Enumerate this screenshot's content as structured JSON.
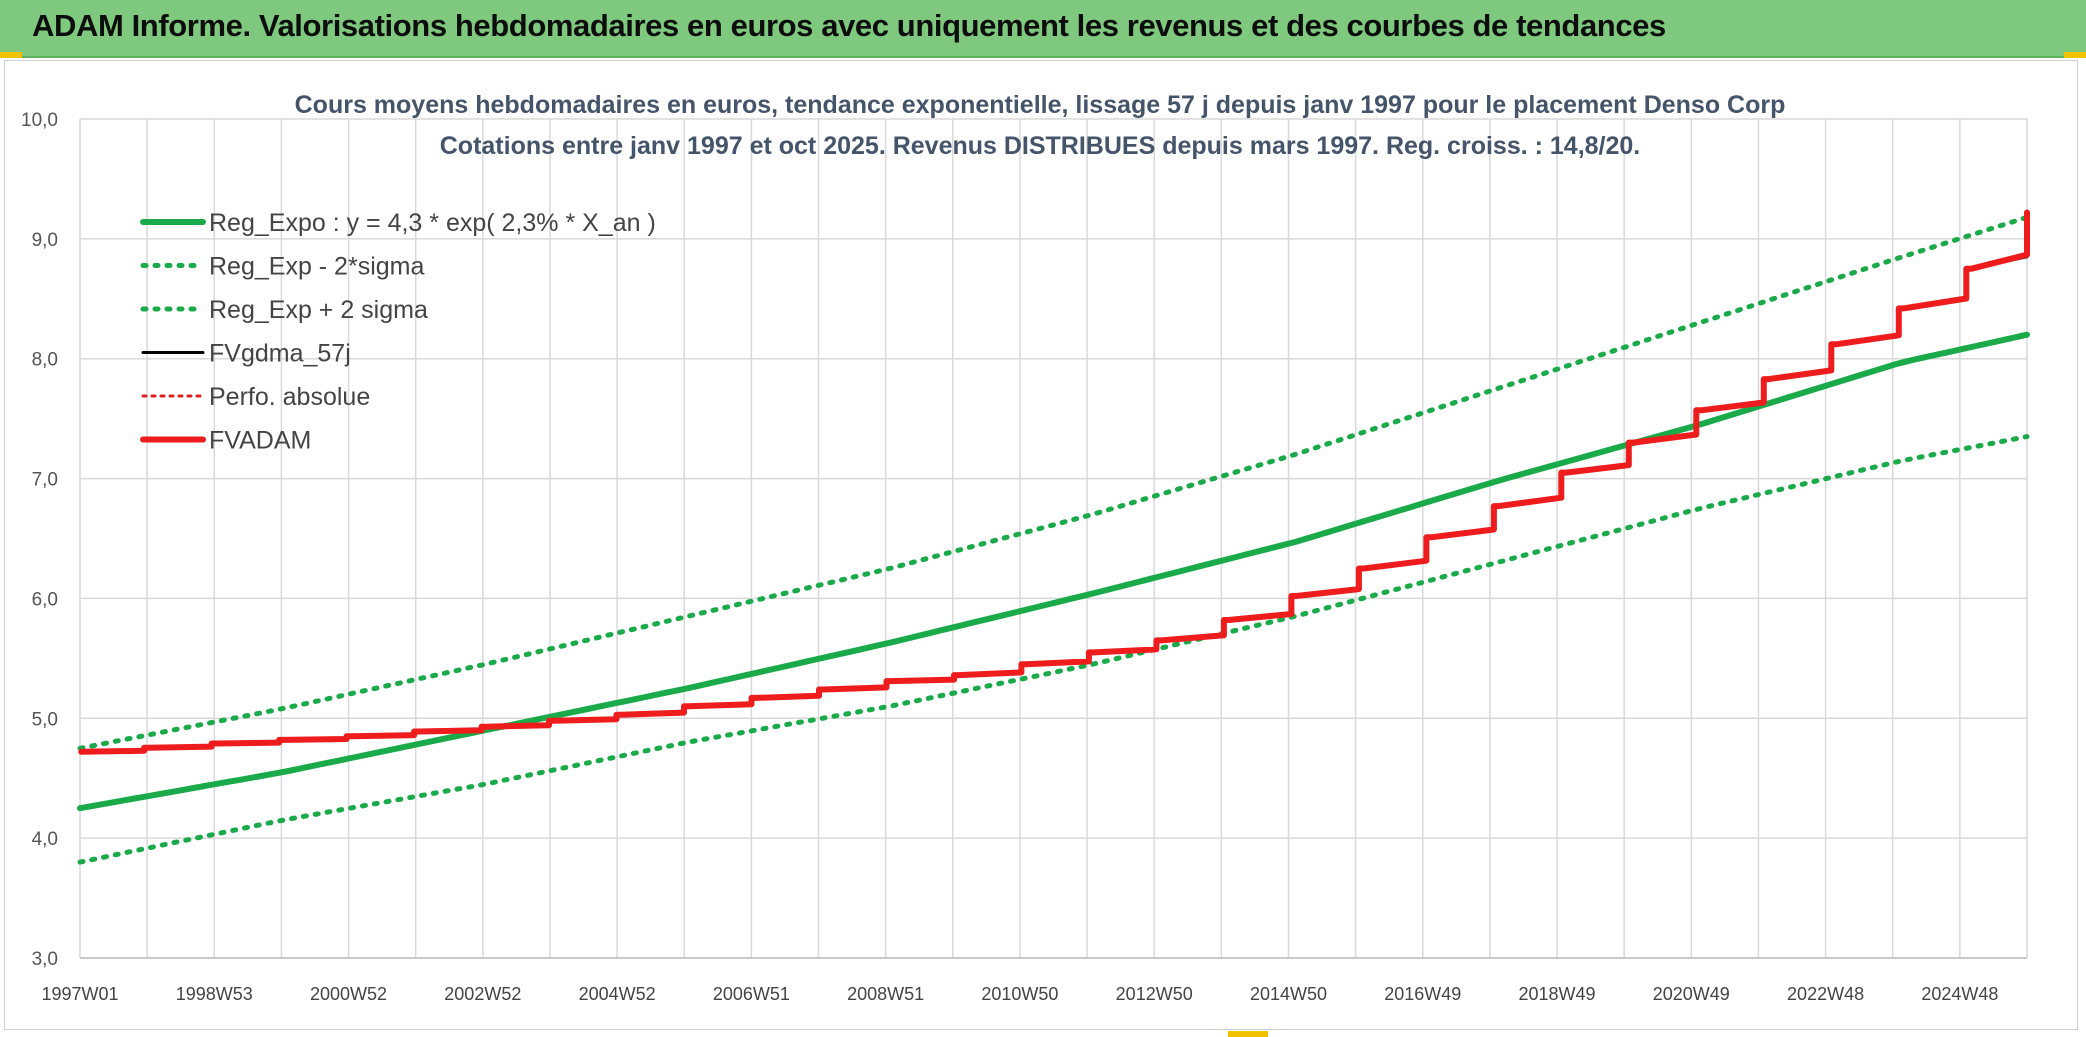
{
  "banner": {
    "title": "ADAM Informe. Valorisations hebdomadaires en euros avec uniquement les revenus et des courbes de tendances"
  },
  "colors": {
    "banner_bg": "#7ec97e",
    "reg_expo": "#1aaa4a",
    "fv_gdma": "#000000",
    "perfo": "#e02020",
    "fvadam": "#ee1c1c",
    "grid": "#d9d9d9"
  },
  "chart_data": {
    "type": "line",
    "title": "Cours moyens hebdomadaires en euros, tendance exponentielle, lissage 57 j depuis janv 1997 pour le placement Denso Corp",
    "subtitle": "Cotations entre janv 1997 et oct 2025. Revenus DISTRIBUES depuis mars 1997. Reg. croiss. : 14,8/20.",
    "xlabel": "",
    "ylabel": "",
    "ylim": [
      3.0,
      10.0
    ],
    "y_ticks": [
      "3,0",
      "4,0",
      "5,0",
      "6,0",
      "7,0",
      "8,0",
      "9,0",
      "10,0"
    ],
    "x_range_years": [
      1997.0,
      2025.85
    ],
    "x_tick_labels": [
      "1997W01",
      "1998W53",
      "2000W52",
      "2002W52",
      "2004W52",
      "2006W51",
      "2008W51",
      "2010W50",
      "2012W50",
      "2014W50",
      "2016W49",
      "2018W49",
      "2020W49",
      "2022W48",
      "2024W48"
    ],
    "grid": true,
    "legend_position": "top-left",
    "series": [
      {
        "name": "Reg_Expo : y = 4,3 * exp( 2,3% *  X_an )",
        "style": "solid-thick",
        "x": [
          1997,
          2000,
          2003,
          2006,
          2009,
          2012,
          2015,
          2018,
          2021,
          2024,
          2025.85
        ],
        "values": [
          4.25,
          4.55,
          4.9,
          5.25,
          5.63,
          6.04,
          6.47,
          6.98,
          7.45,
          7.97,
          8.2
        ]
      },
      {
        "name": "Reg_Exp - 2*sigma",
        "style": "dotted",
        "x": [
          1997,
          2000,
          2003,
          2006,
          2009,
          2012,
          2015,
          2018,
          2021,
          2024,
          2025.85
        ],
        "values": [
          3.8,
          4.15,
          4.45,
          4.8,
          5.1,
          5.45,
          5.85,
          6.3,
          6.75,
          7.15,
          7.35
        ]
      },
      {
        "name": "Reg_Exp + 2 sigma",
        "style": "dotted",
        "x": [
          1997,
          2000,
          2003,
          2006,
          2009,
          2012,
          2015,
          2018,
          2021,
          2024,
          2025.85
        ],
        "values": [
          4.75,
          5.08,
          5.45,
          5.85,
          6.25,
          6.7,
          7.2,
          7.75,
          8.3,
          8.85,
          9.18
        ]
      },
      {
        "name": "FVgdma_57j",
        "style": "solid",
        "x": [
          1997,
          1999,
          2001,
          2003,
          2005,
          2007,
          2009,
          2010,
          2011,
          2012,
          2013,
          2014,
          2015,
          2016,
          2017,
          2018,
          2019,
          2020,
          2021,
          2022,
          2023,
          2024,
          2025,
          2025.85
        ],
        "values": [
          4.72,
          4.79,
          4.85,
          4.93,
          5.03,
          5.17,
          5.31,
          5.36,
          5.45,
          5.55,
          5.65,
          5.82,
          6.02,
          6.25,
          6.51,
          6.77,
          7.05,
          7.3,
          7.57,
          7.83,
          8.12,
          8.42,
          8.75,
          9.15
        ]
      },
      {
        "name": "Perfo. absolue",
        "style": "dotted",
        "x": [
          1997,
          1999,
          2001,
          2003,
          2005,
          2007,
          2009,
          2010,
          2011,
          2012,
          2013,
          2014,
          2015,
          2016,
          2017,
          2018,
          2019,
          2020,
          2021,
          2022,
          2023,
          2024,
          2025,
          2025.85
        ],
        "values": [
          4.72,
          4.79,
          4.85,
          4.93,
          5.03,
          5.17,
          5.31,
          5.36,
          5.45,
          5.55,
          5.65,
          5.82,
          6.02,
          6.25,
          6.51,
          6.77,
          7.05,
          7.3,
          7.57,
          7.83,
          8.12,
          8.42,
          8.75,
          9.2
        ]
      },
      {
        "name": "FVADAM",
        "style": "solid-thick-stepped",
        "x": [
          1997,
          1999,
          2001,
          2003,
          2005,
          2007,
          2009,
          2010,
          2011,
          2012,
          2013,
          2014,
          2015,
          2016,
          2017,
          2018,
          2019,
          2020,
          2021,
          2022,
          2023,
          2024,
          2025,
          2025.85
        ],
        "values": [
          4.72,
          4.79,
          4.85,
          4.93,
          5.03,
          5.17,
          5.31,
          5.36,
          5.45,
          5.55,
          5.65,
          5.82,
          6.02,
          6.25,
          6.51,
          6.77,
          7.05,
          7.3,
          7.57,
          7.83,
          8.12,
          8.42,
          8.75,
          9.22
        ]
      }
    ]
  }
}
